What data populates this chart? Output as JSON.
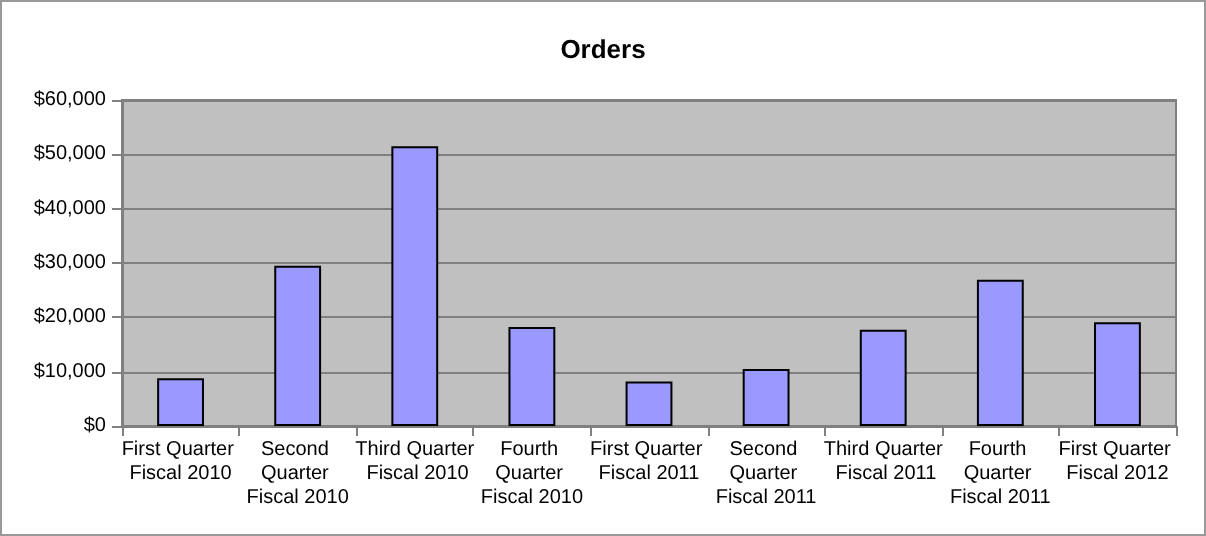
{
  "chart_data": {
    "type": "bar",
    "title": "Orders",
    "categories": [
      "First Quarter Fiscal 2010",
      "Second Quarter Fiscal 2010",
      "Third Quarter Fiscal 2010",
      "Fourth Quarter Fiscal 2010",
      "First Quarter Fiscal 2011",
      "Second Quarter Fiscal 2011",
      "Third Quarter Fiscal 2011",
      "Fourth Quarter Fiscal 2011",
      "First Quarter Fiscal 2012"
    ],
    "values": [
      8800,
      29500,
      51500,
      18200,
      8200,
      10500,
      17700,
      26900,
      19100
    ],
    "color": "#9999ff",
    "ylim": [
      0,
      60000
    ],
    "yticks": [
      {
        "value": 0,
        "label": "$0"
      },
      {
        "value": 10000,
        "label": "$10,000"
      },
      {
        "value": 20000,
        "label": "$20,000"
      },
      {
        "value": 30000,
        "label": "$30,000"
      },
      {
        "value": 40000,
        "label": "$40,000"
      },
      {
        "value": 50000,
        "label": "$50,000"
      },
      {
        "value": 60000,
        "label": "$60,000"
      }
    ],
    "grid": "y"
  }
}
